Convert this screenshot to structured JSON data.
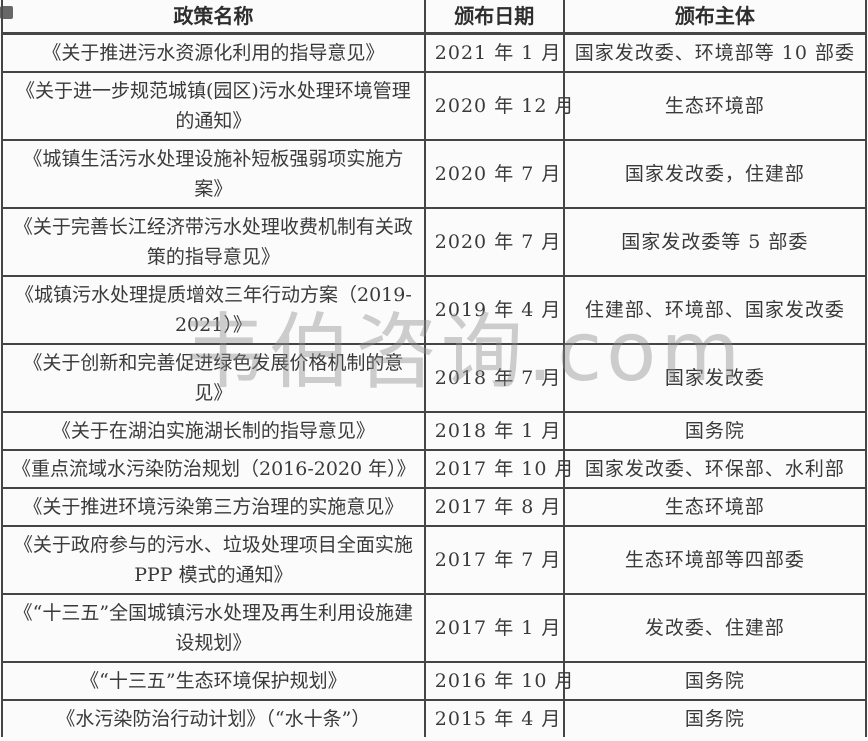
{
  "table": {
    "headers": [
      "政策名称",
      "颁布日期",
      "颁布主体"
    ],
    "rows": [
      {
        "name": "《关于推进污水资源化利用的指导意见》",
        "date": "2021 年 1 月",
        "issuer": "国家发改委、环境部等 10 部委"
      },
      {
        "name": "《关于进一步规范城镇(园区)污水处理环境管理的通知》",
        "date": "2020 年 12 月",
        "issuer": "生态环境部"
      },
      {
        "name": "《城镇生活污水处理设施补短板强弱项实施方案》",
        "date": "2020 年 7 月",
        "issuer": "国家发改委，住建部"
      },
      {
        "name": "《关于完善长江经济带污水处理收费机制有关政策的指导意见》",
        "date": "2020 年 7 月",
        "issuer": "国家发改委等 5 部委"
      },
      {
        "name": "《城镇污水处理提质增效三年行动方案（2019-2021）》",
        "date": "2019 年 4 月",
        "issuer": "住建部、环境部、国家发改委"
      },
      {
        "name": "《关于创新和完善促进绿色发展价格机制的意见》",
        "date": "2018 年 7 月",
        "issuer": "国家发改委"
      },
      {
        "name": "《关于在湖泊实施湖长制的指导意见》",
        "date": "2018 年 1 月",
        "issuer": "国务院"
      },
      {
        "name": "《重点流域水污染防治规划（2016-2020 年）》",
        "date": "2017 年 10 月",
        "issuer": "国家发改委、环保部、水利部"
      },
      {
        "name": "《关于推进环境污染第三方治理的实施意见》",
        "date": "2017 年 8 月",
        "issuer": "生态环境部"
      },
      {
        "name": "《关于政府参与的污水、垃圾处理项目全面实施 PPP 模式的通知》",
        "date": "2017 年 7 月",
        "issuer": "生态环境部等四部委"
      },
      {
        "name": "《“十三五”全国城镇污水处理及再生利用设施建设规划》",
        "date": "2017 年 1 月",
        "issuer": "发改委、住建部"
      },
      {
        "name": "《“十三五”生态环境保护规划》",
        "date": "2016 年 10 月",
        "issuer": "国务院"
      },
      {
        "name": "《水污染防治行动计划》（“水十条”）",
        "date": "2015 年 4 月",
        "issuer": "国务院"
      }
    ]
  },
  "watermark": {
    "text": "韦伯咨询.com",
    "color": "#8d8d8d"
  },
  "colors": {
    "text": "#3a3a3a",
    "border": "#454545",
    "background": "#fbfbfb",
    "watermark": "#8d8d8d"
  }
}
